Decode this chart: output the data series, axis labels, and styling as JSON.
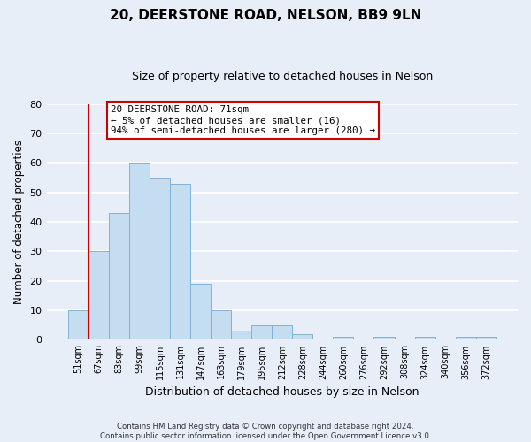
{
  "title": "20, DEERSTONE ROAD, NELSON, BB9 9LN",
  "subtitle": "Size of property relative to detached houses in Nelson",
  "xlabel": "Distribution of detached houses by size in Nelson",
  "ylabel": "Number of detached properties",
  "bar_labels": [
    "51sqm",
    "67sqm",
    "83sqm",
    "99sqm",
    "115sqm",
    "131sqm",
    "147sqm",
    "163sqm",
    "179sqm",
    "195sqm",
    "212sqm",
    "228sqm",
    "244sqm",
    "260sqm",
    "276sqm",
    "292sqm",
    "308sqm",
    "324sqm",
    "340sqm",
    "356sqm",
    "372sqm"
  ],
  "bar_values": [
    10,
    30,
    43,
    60,
    55,
    53,
    19,
    10,
    3,
    5,
    5,
    2,
    0,
    1,
    0,
    1,
    0,
    1,
    0,
    1,
    1
  ],
  "bar_color": "#c5ddf0",
  "bar_edge_color": "#7fb3d8",
  "highlight_bar_index": 1,
  "highlight_line_color": "#cc0000",
  "ylim": [
    0,
    80
  ],
  "yticks": [
    0,
    10,
    20,
    30,
    40,
    50,
    60,
    70,
    80
  ],
  "annotation_title": "20 DEERSTONE ROAD: 71sqm",
  "annotation_line1": "← 5% of detached houses are smaller (16)",
  "annotation_line2": "94% of semi-detached houses are larger (280) →",
  "annotation_box_edge": "#cc0000",
  "footnote1": "Contains HM Land Registry data © Crown copyright and database right 2024.",
  "footnote2": "Contains public sector information licensed under the Open Government Licence v3.0.",
  "background_color": "#e8eef8",
  "grid_color": "#ffffff",
  "title_fontsize": 11,
  "subtitle_fontsize": 9,
  "ylabel_fontsize": 8.5,
  "xlabel_fontsize": 9
}
